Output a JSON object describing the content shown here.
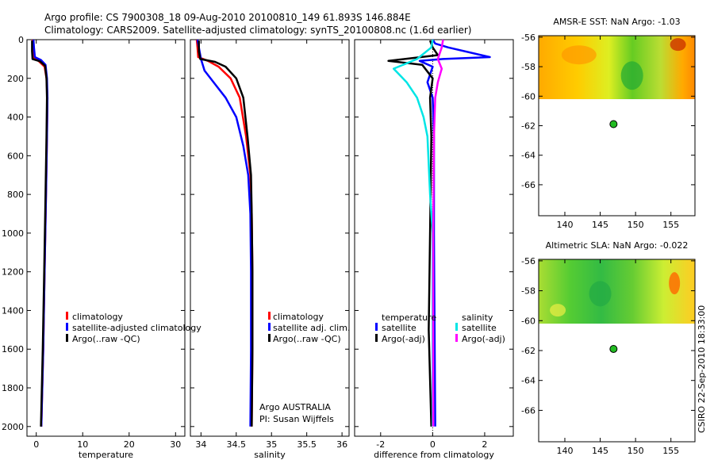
{
  "header": {
    "line1": "Argo profile: CS 7900308_18 09-Aug-2010 20100810_149 61.893S 146.884E",
    "line2": "Climatology: CARS2009. Satellite-adjusted climatology: synTS_20100808.nc (1.6d earlier)"
  },
  "credit": "CSIRO 22-Sep-2010 18:33:00",
  "colors": {
    "red": "#ff0000",
    "blue": "#0000ff",
    "black": "#000000",
    "cyan": "#00e5e5",
    "magenta": "#ff00ff",
    "float_marker": "#22bb22"
  },
  "chart_data": [
    {
      "type": "line",
      "name": "temperature-profile",
      "xlabel": "temperature",
      "ylabel": "",
      "xlim": [
        -2,
        32
      ],
      "ylim": [
        2050,
        0
      ],
      "xticks": [
        0,
        10,
        20,
        30
      ],
      "yticks": [
        0,
        200,
        400,
        600,
        800,
        1000,
        1200,
        1400,
        1600,
        1800,
        2000
      ],
      "legend": [
        "climatology",
        "satellite-adjusted climatology",
        "Argo(..raw -QC)"
      ],
      "series": [
        {
          "name": "climatology",
          "color": "red",
          "points": [
            [
              -0.8,
              0
            ],
            [
              -0.7,
              50
            ],
            [
              -0.5,
              95
            ],
            [
              0.5,
              110
            ],
            [
              1.8,
              140
            ],
            [
              2.2,
              200
            ],
            [
              2.4,
              300
            ],
            [
              2.3,
              500
            ],
            [
              2.1,
              800
            ],
            [
              1.8,
              1200
            ],
            [
              1.5,
              1600
            ],
            [
              1.1,
              2000
            ]
          ]
        },
        {
          "name": "satellite-adjusted climatology",
          "color": "blue",
          "points": [
            [
              -0.6,
              0
            ],
            [
              -0.5,
              40
            ],
            [
              -0.3,
              90
            ],
            [
              1.0,
              105
            ],
            [
              2.0,
              130
            ],
            [
              2.3,
              200
            ],
            [
              2.4,
              300
            ],
            [
              2.3,
              500
            ],
            [
              2.1,
              800
            ],
            [
              1.8,
              1200
            ],
            [
              1.5,
              1600
            ],
            [
              1.1,
              2000
            ]
          ]
        },
        {
          "name": "Argo(..raw -QC)",
          "color": "black",
          "points": [
            [
              -0.9,
              5
            ],
            [
              -0.9,
              60
            ],
            [
              -0.8,
              100
            ],
            [
              0.8,
              112
            ],
            [
              1.9,
              135
            ],
            [
              2.2,
              200
            ],
            [
              2.3,
              300
            ],
            [
              2.2,
              500
            ],
            [
              2.0,
              800
            ],
            [
              1.7,
              1200
            ],
            [
              1.4,
              1600
            ],
            [
              1.0,
              2000
            ]
          ]
        }
      ]
    },
    {
      "type": "line",
      "name": "salinity-profile",
      "xlabel": "salinity",
      "ylabel": "",
      "xlim": [
        33.85,
        36.1
      ],
      "ylim": [
        2050,
        0
      ],
      "xticks": [
        34,
        34.5,
        35,
        35.5,
        36
      ],
      "yticks": [
        0,
        200,
        400,
        600,
        800,
        1000,
        1200,
        1400,
        1600,
        1800,
        2000
      ],
      "legend": [
        "climatology",
        "satellite adj. clim.",
        "Argo(..raw -QC)"
      ],
      "annotation": [
        "Argo AUSTRALIA",
        "PI: Susan Wijffels"
      ],
      "series": [
        {
          "name": "climatology",
          "color": "red",
          "points": [
            [
              33.94,
              0
            ],
            [
              33.95,
              40
            ],
            [
              33.96,
              90
            ],
            [
              34.1,
              110
            ],
            [
              34.25,
              140
            ],
            [
              34.42,
              200
            ],
            [
              34.55,
              300
            ],
            [
              34.64,
              500
            ],
            [
              34.7,
              700
            ],
            [
              34.72,
              900
            ],
            [
              34.73,
              1200
            ],
            [
              34.73,
              1600
            ],
            [
              34.72,
              2000
            ]
          ]
        },
        {
          "name": "satellite adj. clim.",
          "color": "blue",
          "points": [
            [
              33.95,
              0
            ],
            [
              33.97,
              40
            ],
            [
              34.0,
              100
            ],
            [
              34.05,
              160
            ],
            [
              34.2,
              230
            ],
            [
              34.35,
              300
            ],
            [
              34.5,
              400
            ],
            [
              34.6,
              550
            ],
            [
              34.67,
              700
            ],
            [
              34.7,
              900
            ],
            [
              34.71,
              1200
            ],
            [
              34.71,
              1600
            ],
            [
              34.7,
              2000
            ]
          ]
        },
        {
          "name": "Argo(..raw -QC)",
          "color": "black",
          "points": [
            [
              33.97,
              5
            ],
            [
              33.97,
              60
            ],
            [
              33.99,
              100
            ],
            [
              34.2,
              115
            ],
            [
              34.35,
              140
            ],
            [
              34.5,
              200
            ],
            [
              34.6,
              300
            ],
            [
              34.66,
              500
            ],
            [
              34.71,
              700
            ],
            [
              34.72,
              900
            ],
            [
              34.73,
              1200
            ],
            [
              34.73,
              1600
            ],
            [
              34.72,
              2000
            ]
          ]
        }
      ]
    },
    {
      "type": "line",
      "name": "difference-profile",
      "xlabel": "difference from climatology",
      "ylabel": "",
      "xlim": [
        -3,
        3.1
      ],
      "ylim": [
        2050,
        0
      ],
      "xticks": [
        -2,
        0,
        2
      ],
      "yticks": [
        0,
        200,
        400,
        600,
        800,
        1000,
        1200,
        1400,
        1600,
        1800,
        2000
      ],
      "legend_groups": [
        {
          "title": "temperature",
          "entries": [
            "satellite",
            "Argo(-adj)"
          ]
        },
        {
          "title": "salinity",
          "entries": [
            "satellite",
            "Argo(-adj)"
          ]
        }
      ],
      "series": [
        {
          "name": "temperature satellite",
          "color": "blue",
          "points": [
            [
              0,
              0
            ],
            [
              0.1,
              20
            ],
            [
              0.6,
              40
            ],
            [
              2.2,
              90
            ],
            [
              0.4,
              100
            ],
            [
              -0.5,
              110
            ],
            [
              0.0,
              140
            ],
            [
              -0.2,
              220
            ],
            [
              0.0,
              300
            ],
            [
              0.05,
              500
            ],
            [
              0.05,
              1000
            ],
            [
              0.1,
              2000
            ]
          ]
        },
        {
          "name": "temperature Argo(-adj)",
          "color": "black",
          "points": [
            [
              -0.1,
              5
            ],
            [
              0.0,
              40
            ],
            [
              0.2,
              80
            ],
            [
              -1.7,
              110
            ],
            [
              -0.4,
              130
            ],
            [
              0.0,
              200
            ],
            [
              -0.1,
              300
            ],
            [
              -0.05,
              500
            ],
            [
              -0.1,
              1000
            ],
            [
              -0.15,
              1500
            ],
            [
              -0.05,
              2000
            ]
          ]
        },
        {
          "name": "salinity satellite",
          "color": "cyan",
          "points": [
            [
              0.0,
              0
            ],
            [
              -0.05,
              40
            ],
            [
              -0.6,
              100
            ],
            [
              -1.5,
              150
            ],
            [
              -1.0,
              220
            ],
            [
              -0.6,
              300
            ],
            [
              -0.35,
              400
            ],
            [
              -0.2,
              500
            ],
            [
              -0.1,
              800
            ],
            [
              0.0,
              1000
            ],
            [
              0.0,
              2000
            ]
          ]
        },
        {
          "name": "salinity Argo(-adj)",
          "color": "magenta",
          "points": [
            [
              0.4,
              0
            ],
            [
              0.35,
              40
            ],
            [
              0.2,
              100
            ],
            [
              0.35,
              150
            ],
            [
              0.2,
              220
            ],
            [
              0.1,
              300
            ],
            [
              0.05,
              500
            ],
            [
              0.02,
              1000
            ],
            [
              0.02,
              2000
            ]
          ]
        }
      ]
    },
    {
      "type": "heatmap",
      "name": "sst-map",
      "title": "AMSR-E SST: NaN Argo: -1.03",
      "xlim": [
        136.3,
        158.4
      ],
      "ylim": [
        -68.1,
        -55.9
      ],
      "xticks": [
        140,
        145,
        150,
        155
      ],
      "yticks": [
        -56,
        -58,
        -60,
        -62,
        -64,
        -66
      ],
      "data_extent_lat": [
        -60.2,
        -55.9
      ],
      "float_position": {
        "lon": 146.884,
        "lat": -61.893
      }
    },
    {
      "type": "heatmap",
      "name": "sla-map",
      "title": "Altimetric SLA: NaN Argo: -0.022",
      "xlim": [
        136.3,
        158.4
      ],
      "ylim": [
        -68.1,
        -55.9
      ],
      "xticks": [
        140,
        145,
        150,
        155
      ],
      "yticks": [
        -56,
        -58,
        -60,
        -62,
        -64,
        -66
      ],
      "data_extent_lat": [
        -60.2,
        -55.9
      ],
      "float_position": {
        "lon": 146.884,
        "lat": -61.893
      }
    }
  ]
}
